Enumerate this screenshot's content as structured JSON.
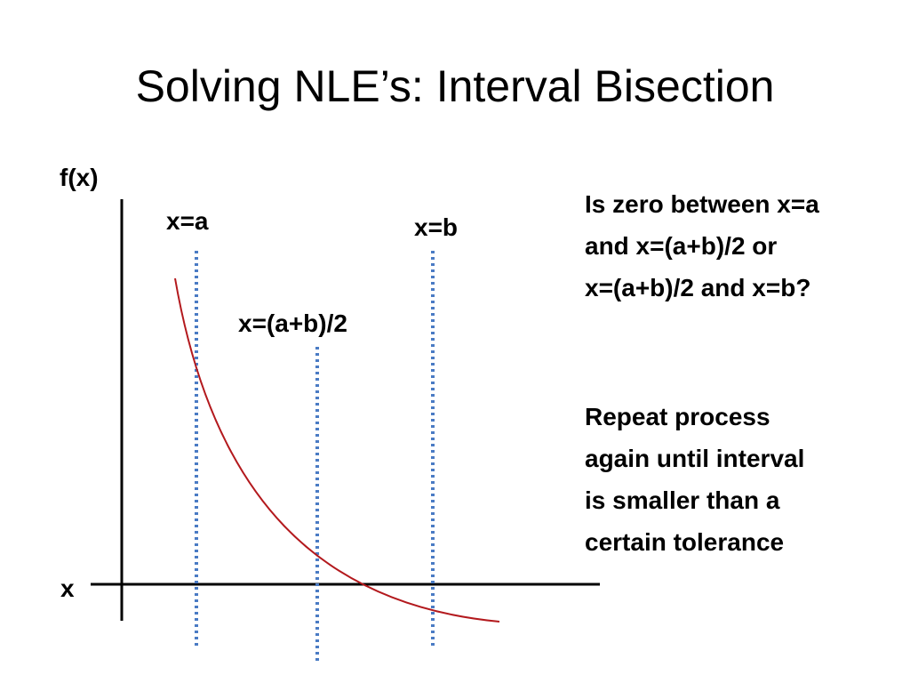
{
  "slide": {
    "title": "Solving NLE’s: Interval Bisection"
  },
  "diagram": {
    "y_axis_label": "f(x)",
    "x_axis_label": "x",
    "markers": {
      "a": "x=a",
      "b": "x=b",
      "mid": "x=(a+b)/2"
    },
    "colors": {
      "curve": "#b3191d",
      "markers": "#4a7bc4",
      "axes": "#000000"
    }
  },
  "notes": {
    "question_lines": [
      "Is zero between x=a",
      "and x=(a+b)/2 or",
      "x=(a+b)/2 and x=b?"
    ],
    "repeat_lines": [
      "Repeat process",
      "again until interval",
      "is smaller than a",
      "certain tolerance"
    ]
  }
}
